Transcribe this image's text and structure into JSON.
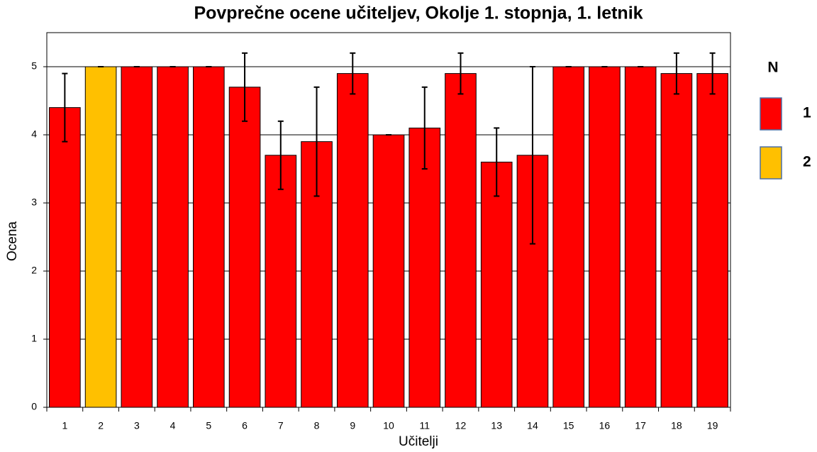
{
  "chart_data": {
    "type": "bar",
    "title": "Povprečne ocene učiteljev, Okolje 1. stopnja, 1. letnik",
    "xlabel": "Učitelji",
    "ylabel": "Ocena",
    "legend_title": "N",
    "categories": [
      "1",
      "2",
      "3",
      "4",
      "5",
      "6",
      "7",
      "8",
      "9",
      "10",
      "11",
      "12",
      "13",
      "14",
      "15",
      "16",
      "17",
      "18",
      "19"
    ],
    "series": [
      {
        "name": "1",
        "color": "#ff0000",
        "values": [
          4.4,
          null,
          5,
          5,
          5,
          4.7,
          3.7,
          3.9,
          4.9,
          4.0,
          4.1,
          4.9,
          3.6,
          3.7,
          5,
          5,
          5,
          4.9,
          4.9
        ],
        "errors": [
          0.5,
          null,
          0,
          0,
          0,
          0.5,
          0.5,
          0.8,
          0.3,
          0,
          0.6,
          0.3,
          0.5,
          1.3,
          0,
          0,
          0,
          0.3,
          0.3
        ]
      },
      {
        "name": "2",
        "color": "#ffc000",
        "values": [
          null,
          5,
          null,
          null,
          null,
          null,
          null,
          null,
          null,
          null,
          null,
          null,
          null,
          null,
          null,
          null,
          null,
          null,
          null
        ],
        "errors": [
          null,
          0,
          null,
          null,
          null,
          null,
          null,
          null,
          null,
          null,
          null,
          null,
          null,
          null,
          null,
          null,
          null,
          null,
          null
        ]
      }
    ],
    "ylim": [
      0,
      5.5
    ],
    "yticks": [
      0,
      1,
      2,
      3,
      4,
      5
    ],
    "grid": true
  }
}
